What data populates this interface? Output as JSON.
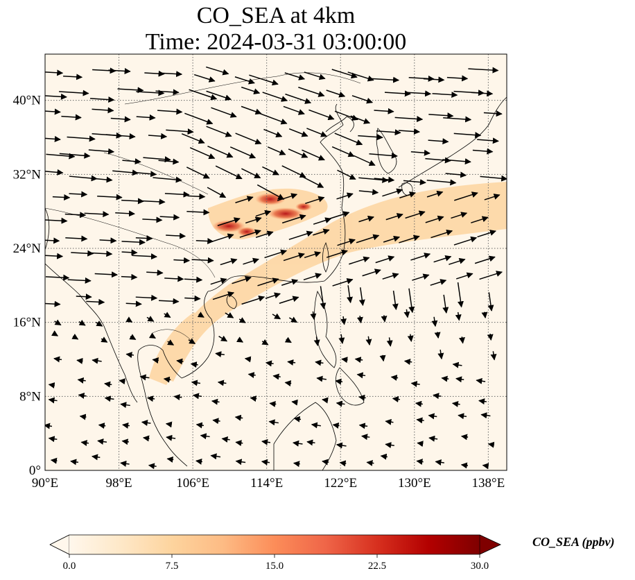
{
  "figure": {
    "title_line1": "CO_SEA at 4km",
    "title_line2": "Time: 2024-03-31 03:00:00"
  },
  "map": {
    "extent": {
      "lon_min": 90,
      "lon_max": 140,
      "lat_min": 0,
      "lat_max": 45
    },
    "lon_ticks": [
      90,
      98,
      106,
      114,
      122,
      130,
      138
    ],
    "lon_tick_labels": [
      "90°E",
      "98°E",
      "106°E",
      "114°E",
      "122°E",
      "130°E",
      "138°E"
    ],
    "lat_ticks": [
      0,
      8,
      16,
      24,
      32,
      40
    ],
    "lat_tick_labels": [
      "0°",
      "8°N",
      "16°N",
      "24°N",
      "32°N",
      "40°N"
    ],
    "gridlines": "dotted",
    "background_color": "#fef6ea",
    "plume_color": "#fdd5a0",
    "hotspot_color": "#c8281e",
    "coastline_color": "#000000",
    "vector_field": "wind arrows (westerly/northwesterly north of ~20°N, weak easterly south of ~15°N)"
  },
  "colorbar": {
    "label": "CO_SEA (ppbv)",
    "cmap": "OrRd",
    "min": 0.0,
    "max": 30.0,
    "extend": "both",
    "ticks": [
      0.0,
      7.5,
      15.0,
      22.5,
      30.0
    ],
    "tick_labels": [
      "0.0",
      "7.5",
      "15.0",
      "22.5",
      "30.0"
    ],
    "colors": [
      "#fff7ec",
      "#fee8c8",
      "#fdd49e",
      "#fdbb84",
      "#fc8d59",
      "#ef6548",
      "#d7301f",
      "#b30000",
      "#7f0000"
    ]
  }
}
